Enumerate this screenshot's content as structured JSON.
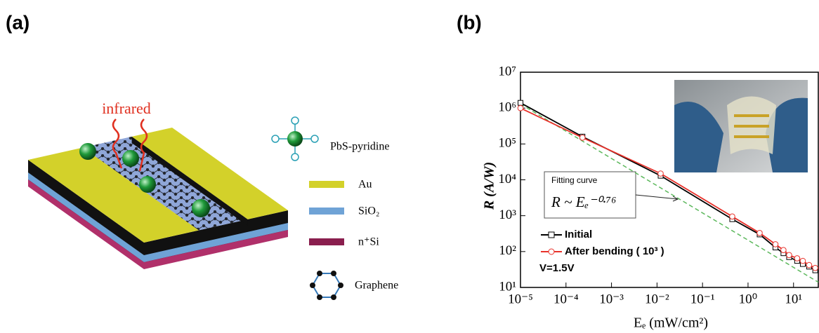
{
  "panel_a": {
    "label": "(a)",
    "excitation": "infrared",
    "legend": [
      "PbS-pyridine",
      "Au",
      "SiO₂",
      "n⁺Si",
      "Graphene"
    ]
  },
  "chart_data": {
    "type": "line",
    "panel_label": "(b)",
    "ylabel": "R  (A/W)",
    "xlabel": "Eₑ (mW/cm²)",
    "xscale": "log",
    "yscale": "log",
    "xlim": [
      1e-05,
      35
    ],
    "ylim": [
      10,
      10000000
    ],
    "xticks": [
      {
        "value": 1e-05,
        "label": "10⁻⁵"
      },
      {
        "value": 0.0001,
        "label": "10⁻⁴"
      },
      {
        "value": 0.001,
        "label": "10⁻³"
      },
      {
        "value": 0.01,
        "label": "10⁻²"
      },
      {
        "value": 0.1,
        "label": "10⁻¹"
      },
      {
        "value": 1,
        "label": "10⁰"
      },
      {
        "value": 10,
        "label": "10¹"
      }
    ],
    "yticks": [
      {
        "value": 10,
        "label": "10¹"
      },
      {
        "value": 100,
        "label": "10²"
      },
      {
        "value": 1000,
        "label": "10³"
      },
      {
        "value": 10000,
        "label": "10⁴"
      },
      {
        "value": 100000,
        "label": "10⁵"
      },
      {
        "value": 1000000,
        "label": "10⁶"
      },
      {
        "value": 10000000,
        "label": "10⁷"
      }
    ],
    "x": [
      1e-05,
      0.00023,
      0.012,
      0.45,
      1.8,
      4,
      6,
      8,
      12,
      16,
      22,
      30
    ],
    "series": [
      {
        "name": "Initial",
        "color": "#000000",
        "marker": "square",
        "values": [
          1400000,
          160000,
          13000,
          800,
          300,
          130,
          90,
          70,
          55,
          45,
          38,
          30
        ]
      },
      {
        "name": "After bending ( 10³ )",
        "color": "#e8312a",
        "marker": "circle",
        "values": [
          1000000,
          150000,
          15000,
          950,
          330,
          160,
          110,
          80,
          65,
          55,
          42,
          35
        ]
      }
    ],
    "fit": {
      "label": "Fitting curve",
      "equation": "R ~ Eₑ⁻⁰·⁷⁶",
      "color": "#5cb85c",
      "x": [
        1e-05,
        35
      ],
      "values": [
        1300000,
        14
      ]
    },
    "annotation": "V=1.5V"
  }
}
